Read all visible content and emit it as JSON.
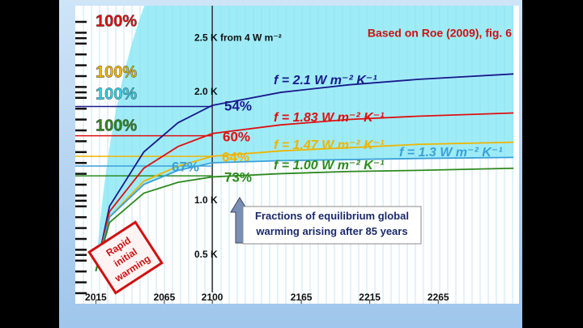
{
  "chart_data": {
    "type": "line",
    "title": "Based on Roe (2009), fig. 6",
    "x": [
      2015,
      2025,
      2050,
      2075,
      2100,
      2150,
      2200,
      2250,
      2320
    ],
    "xlim": [
      2000,
      2324
    ],
    "xticks": [
      2015,
      2065,
      2100,
      2165,
      2215,
      2265
    ],
    "ylim": [
      0.05,
      2.8
    ],
    "yticks": [
      {
        "value": 0.5,
        "label": "0.5 K"
      },
      {
        "value": 1.0,
        "label": "1.0 K"
      },
      {
        "value": 2.0,
        "label": "2.0 K"
      },
      {
        "value": 2.5,
        "label": "2.5 K from 4 W m⁻²"
      }
    ],
    "series": [
      {
        "name": "f = 2.1 W m⁻² K⁻¹",
        "color": "#1a1a8c",
        "fraction_label": "54%",
        "reference_value": 1.87,
        "values": [
          0.35,
          0.95,
          1.45,
          1.72,
          1.88,
          2.0,
          2.07,
          2.12,
          2.17
        ]
      },
      {
        "name": "f = 1.83 W m⁻² K⁻¹",
        "color": "#e01010",
        "fraction_label": "60%",
        "reference_value": 1.6,
        "values": [
          0.35,
          0.9,
          1.3,
          1.5,
          1.62,
          1.7,
          1.75,
          1.78,
          1.81
        ]
      },
      {
        "name": "f = 1.47 W m⁻² K⁻¹",
        "color": "#f0b400",
        "fraction_label": "64%",
        "reference_value": 1.41,
        "values": [
          0.35,
          0.85,
          1.18,
          1.32,
          1.41,
          1.46,
          1.49,
          1.52,
          1.54
        ]
      },
      {
        "name": "f = 1.3 W m⁻² K⁻¹",
        "color": "#3aa0d8",
        "fraction_label": "67%",
        "reference_value": 1.32,
        "values": [
          0.35,
          0.85,
          1.15,
          1.28,
          1.35,
          1.37,
          1.38,
          1.39,
          1.4
        ]
      },
      {
        "name": "f = 1.00 W m⁻² K⁻¹",
        "color": "#2e8a1e",
        "fraction_label": "73%",
        "reference_value": 1.23,
        "values": [
          0.35,
          0.8,
          1.07,
          1.17,
          1.22,
          1.25,
          1.27,
          1.28,
          1.3
        ]
      }
    ],
    "reference_labels": [
      "100%",
      "100%",
      "100%",
      "100%"
    ],
    "callout": "Fractions of equilibrium global warming arising after 85 years",
    "stamp": "Rapid initial warming"
  }
}
